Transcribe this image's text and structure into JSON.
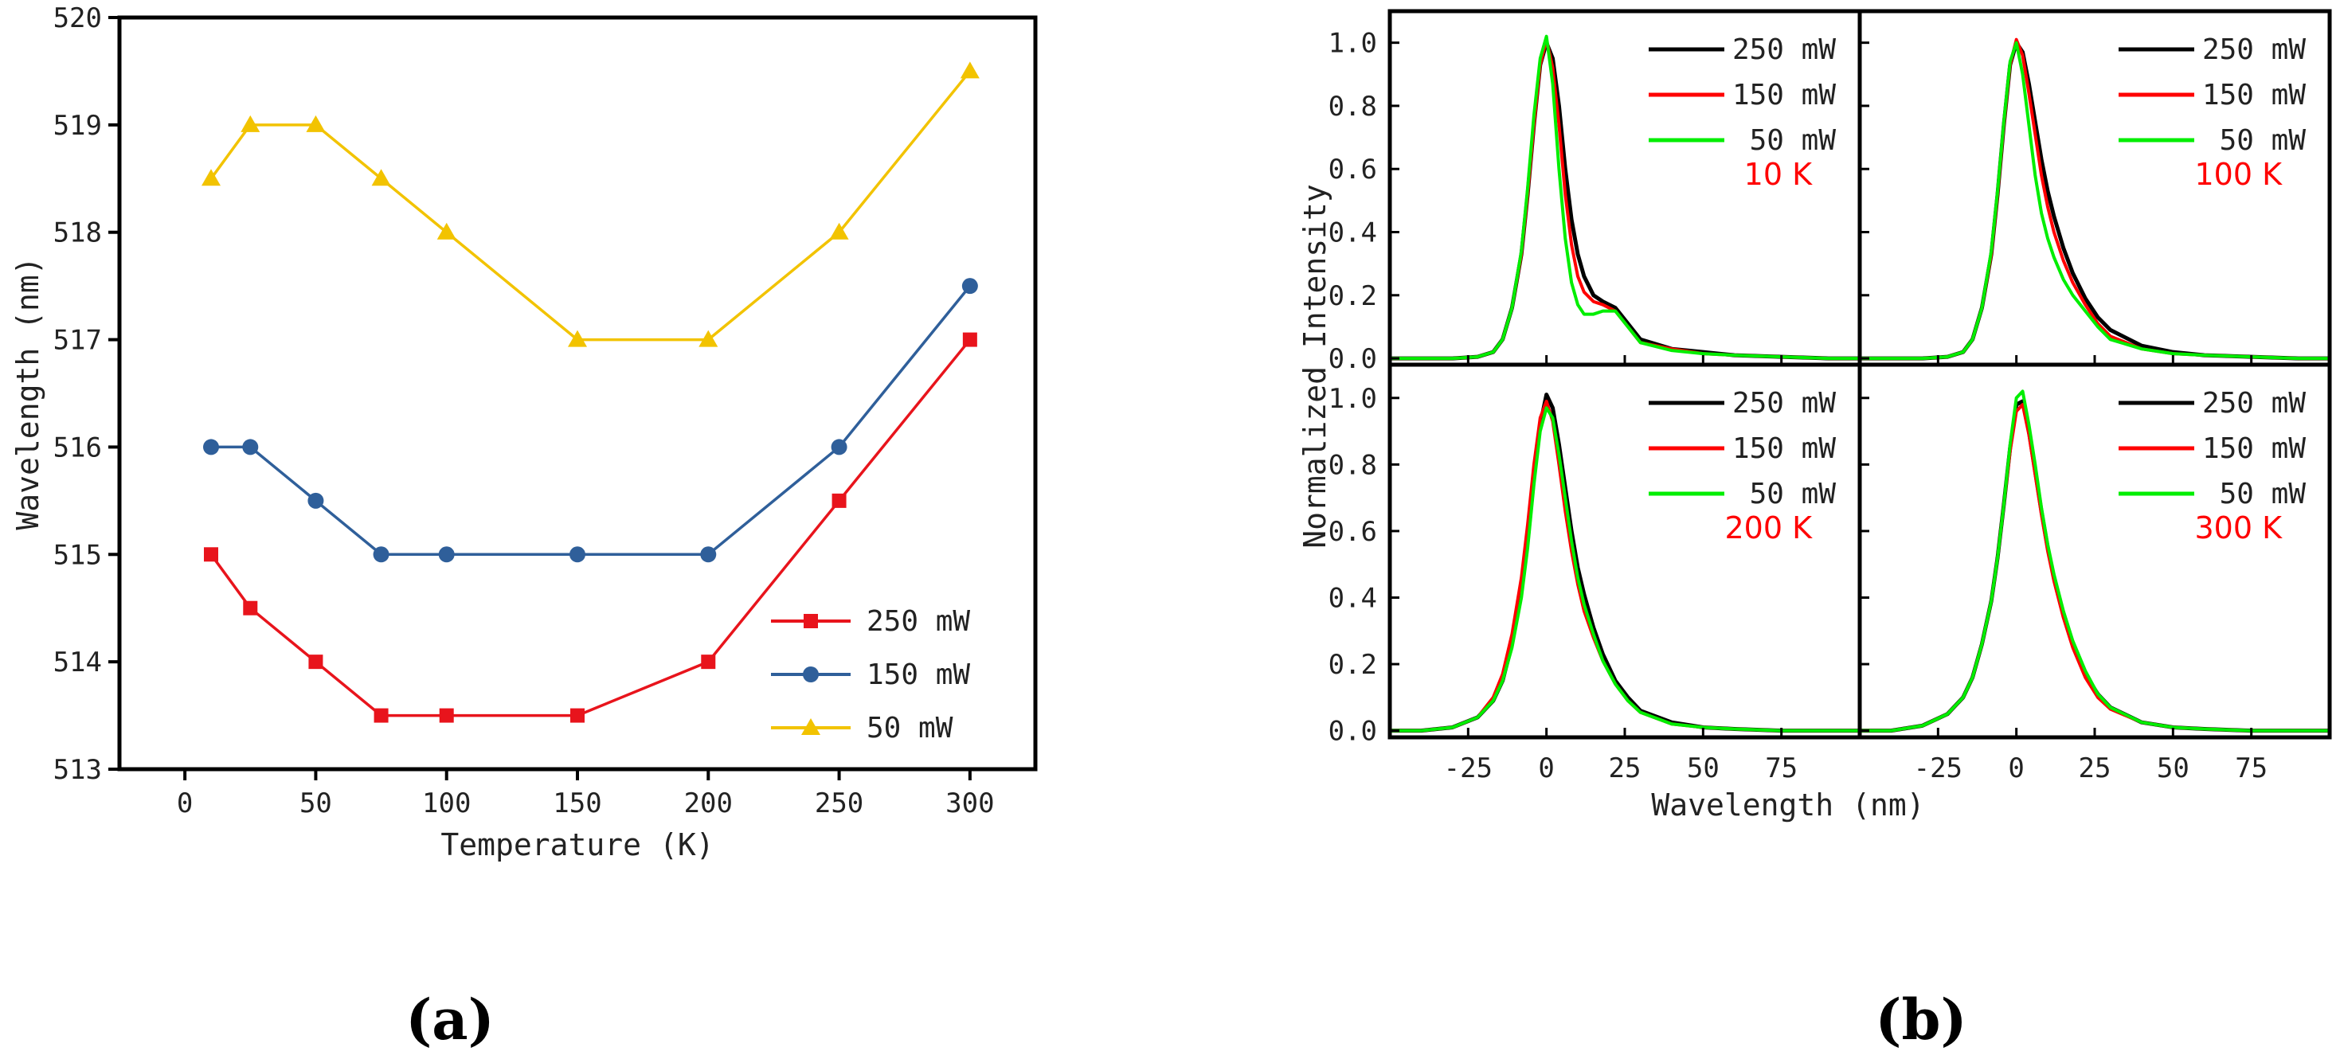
{
  "chart_data": [
    {
      "id": "a",
      "type": "line",
      "panel_label": "(a)",
      "xlabel": "Temperature (K)",
      "ylabel": "Wavelength (nm)",
      "xlim": [
        -25,
        325
      ],
      "ylim": [
        513,
        520
      ],
      "xticks": [
        0,
        50,
        100,
        150,
        200,
        250,
        300
      ],
      "yticks": [
        513,
        514,
        515,
        516,
        517,
        518,
        519,
        520
      ],
      "grid": false,
      "legend_position": "bottom-right",
      "x": [
        10,
        25,
        50,
        75,
        100,
        150,
        200,
        250,
        300
      ],
      "series": [
        {
          "name": "250 mW",
          "color": "#e8141c",
          "marker": "square",
          "values": [
            515,
            514.5,
            514,
            513.5,
            513.5,
            513.5,
            514,
            515.5,
            517
          ]
        },
        {
          "name": "150 mW",
          "color": "#2f5f9a",
          "marker": "circle",
          "values": [
            516,
            516,
            515.5,
            515,
            515,
            515,
            515,
            516,
            517.5
          ]
        },
        {
          "name": "50 mW",
          "color": "#f2c300",
          "marker": "triangle",
          "values": [
            518.5,
            519,
            519,
            518.5,
            518,
            517,
            517,
            518,
            519.5
          ]
        }
      ]
    },
    {
      "id": "b",
      "type": "line",
      "panel_label": "(b)",
      "xlabel": "Wavelength (nm)",
      "ylabel": "Normalized Intensity",
      "xlim": [
        -50,
        100
      ],
      "ylim": [
        -0.02,
        1.1
      ],
      "xticks": [
        -25,
        0,
        25,
        50,
        75
      ],
      "yticks": [
        0.0,
        0.2,
        0.4,
        0.6,
        0.8,
        1.0
      ],
      "ytick_labels": [
        "0.0",
        "0.2",
        "0.4",
        "0.6",
        "0.8",
        "1.0"
      ],
      "legend_position": "top-right",
      "series_info": [
        {
          "name": "250 mW",
          "color": "#000000"
        },
        {
          "name": "150 mW",
          "color": "#ff0000"
        },
        {
          "name": "50 mW",
          "color": "#00ee00"
        }
      ],
      "x": [
        -50,
        -40,
        -30,
        -22,
        -17,
        -14,
        -11,
        -8,
        -6,
        -4,
        -2,
        0,
        2,
        4,
        6,
        8,
        10,
        12,
        15,
        18,
        22,
        26,
        30,
        40,
        50,
        60,
        75,
        90,
        100
      ],
      "subplots": [
        {
          "temperature": "10 K",
          "series": [
            [
              0,
              0,
              0,
              0.005,
              0.02,
              0.06,
              0.16,
              0.33,
              0.52,
              0.74,
              0.93,
              1.0,
              0.95,
              0.8,
              0.6,
              0.44,
              0.33,
              0.26,
              0.2,
              0.18,
              0.16,
              0.11,
              0.06,
              0.03,
              0.02,
              0.01,
              0.005,
              0,
              0
            ],
            [
              0,
              0,
              0,
              0.005,
              0.02,
              0.06,
              0.16,
              0.33,
              0.52,
              0.74,
              0.93,
              1.01,
              0.92,
              0.74,
              0.52,
              0.36,
              0.26,
              0.21,
              0.18,
              0.17,
              0.15,
              0.1,
              0.05,
              0.03,
              0.015,
              0.01,
              0.005,
              0,
              0
            ],
            [
              0,
              0,
              0,
              0.005,
              0.02,
              0.06,
              0.16,
              0.34,
              0.54,
              0.77,
              0.95,
              1.02,
              0.87,
              0.6,
              0.38,
              0.24,
              0.17,
              0.14,
              0.14,
              0.15,
              0.15,
              0.1,
              0.05,
              0.025,
              0.015,
              0.01,
              0.005,
              0,
              0
            ]
          ]
        },
        {
          "temperature": "100 K",
          "series": [
            [
              0,
              0,
              0,
              0.005,
              0.02,
              0.06,
              0.16,
              0.33,
              0.52,
              0.74,
              0.93,
              1.0,
              0.97,
              0.87,
              0.75,
              0.63,
              0.53,
              0.45,
              0.35,
              0.27,
              0.19,
              0.13,
              0.09,
              0.04,
              0.02,
              0.01,
              0.005,
              0,
              0
            ],
            [
              0,
              0,
              0,
              0.005,
              0.02,
              0.06,
              0.16,
              0.33,
              0.52,
              0.74,
              0.93,
              1.01,
              0.96,
              0.84,
              0.71,
              0.58,
              0.48,
              0.4,
              0.31,
              0.24,
              0.17,
              0.11,
              0.07,
              0.03,
              0.015,
              0.01,
              0.005,
              0,
              0
            ],
            [
              0,
              0,
              0,
              0.005,
              0.02,
              0.06,
              0.16,
              0.34,
              0.53,
              0.75,
              0.94,
              1.0,
              0.9,
              0.74,
              0.58,
              0.46,
              0.38,
              0.32,
              0.25,
              0.2,
              0.15,
              0.1,
              0.06,
              0.03,
              0.015,
              0.01,
              0.005,
              0,
              0
            ]
          ]
        },
        {
          "temperature": "200 K",
          "series": [
            [
              0,
              0,
              0.01,
              0.04,
              0.09,
              0.15,
              0.26,
              0.42,
              0.57,
              0.76,
              0.92,
              1.01,
              0.97,
              0.86,
              0.73,
              0.6,
              0.49,
              0.41,
              0.31,
              0.23,
              0.15,
              0.1,
              0.06,
              0.025,
              0.01,
              0.005,
              0,
              0,
              0
            ],
            [
              0,
              0,
              0.01,
              0.04,
              0.1,
              0.17,
              0.29,
              0.46,
              0.62,
              0.8,
              0.94,
              0.99,
              0.93,
              0.8,
              0.66,
              0.54,
              0.44,
              0.36,
              0.28,
              0.21,
              0.14,
              0.09,
              0.055,
              0.02,
              0.01,
              0.005,
              0,
              0,
              0
            ],
            [
              0,
              0,
              0.01,
              0.04,
              0.09,
              0.15,
              0.25,
              0.4,
              0.55,
              0.74,
              0.9,
              0.97,
              0.94,
              0.83,
              0.7,
              0.57,
              0.46,
              0.38,
              0.29,
              0.21,
              0.14,
              0.09,
              0.055,
              0.02,
              0.01,
              0.005,
              0,
              0,
              0
            ]
          ]
        },
        {
          "temperature": "300 K",
          "series": [
            [
              0,
              0,
              0.015,
              0.05,
              0.1,
              0.16,
              0.26,
              0.39,
              0.52,
              0.68,
              0.85,
              0.98,
              0.99,
              0.9,
              0.78,
              0.66,
              0.55,
              0.46,
              0.35,
              0.26,
              0.17,
              0.11,
              0.07,
              0.025,
              0.01,
              0.005,
              0,
              0,
              0
            ],
            [
              0,
              0,
              0.015,
              0.05,
              0.1,
              0.16,
              0.26,
              0.39,
              0.52,
              0.68,
              0.84,
              0.96,
              0.98,
              0.89,
              0.77,
              0.65,
              0.54,
              0.45,
              0.34,
              0.25,
              0.16,
              0.1,
              0.065,
              0.025,
              0.01,
              0.005,
              0,
              0,
              0
            ],
            [
              0,
              0,
              0.015,
              0.05,
              0.1,
              0.16,
              0.26,
              0.39,
              0.52,
              0.68,
              0.86,
              1.0,
              1.02,
              0.92,
              0.8,
              0.67,
              0.56,
              0.47,
              0.36,
              0.27,
              0.18,
              0.11,
              0.07,
              0.025,
              0.01,
              0.005,
              0,
              0,
              0
            ]
          ]
        }
      ]
    }
  ]
}
